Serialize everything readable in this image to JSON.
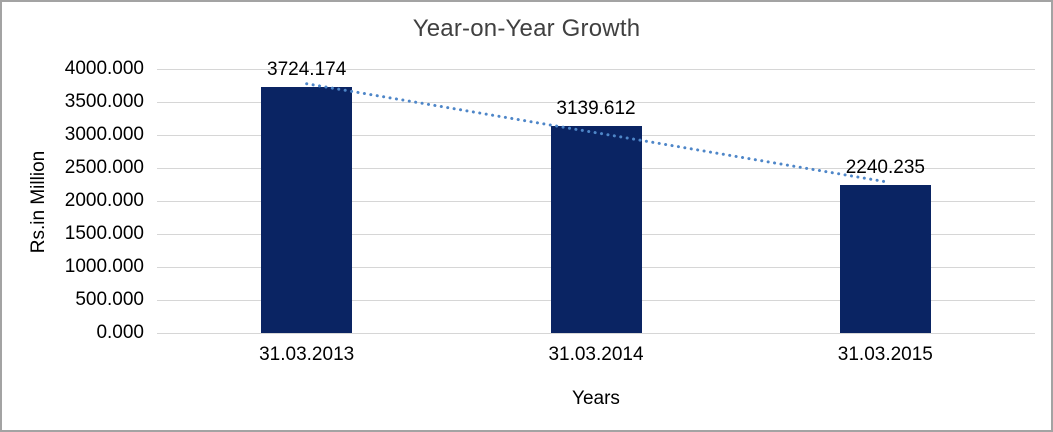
{
  "chart_data": {
    "type": "bar",
    "title": "Year-on-Year Growth",
    "xlabel": "Years",
    "ylabel": "Rs.in Million",
    "categories": [
      "31.03.2013",
      "31.03.2014",
      "31.03.2015"
    ],
    "values": [
      3724.174,
      3139.612,
      2240.235
    ],
    "data_labels": [
      "3724.174",
      "3139.612",
      "2240.235"
    ],
    "ylim": [
      0,
      4000
    ],
    "ytick_labels": [
      "4000.000",
      "3500.000",
      "3000.000",
      "2500.000",
      "2000.000",
      "1500.000",
      "1000.000",
      "500.000",
      "0.000"
    ],
    "grid": true,
    "legend": false,
    "trendline": {
      "type": "linear",
      "style": "dotted",
      "color": "#4e86c8"
    },
    "colors": {
      "bar": "#0a2463",
      "gridline": "#d6d6d6",
      "frame_border": "#a3a3a3",
      "title_text": "#404040",
      "tick_text": "#000000"
    }
  }
}
